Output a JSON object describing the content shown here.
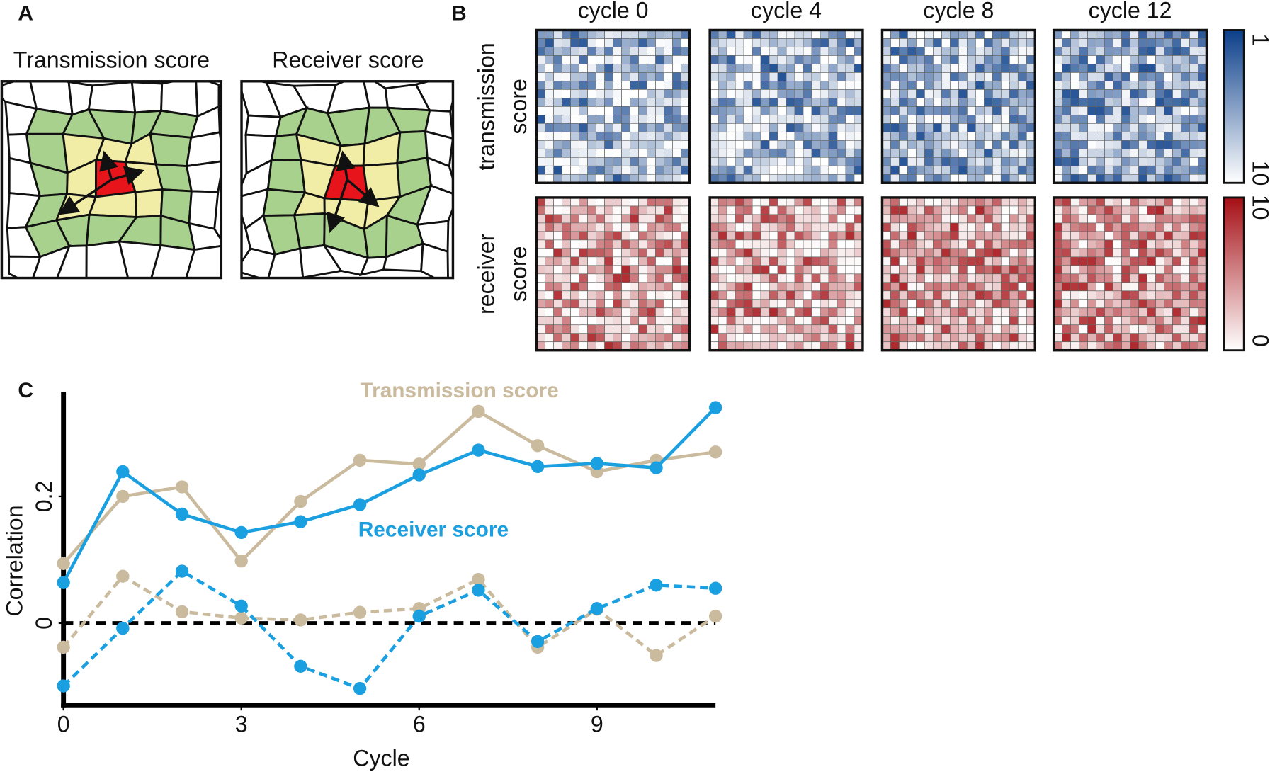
{
  "panel_a": {
    "label": "A",
    "titles": [
      "Transmission score",
      "Receiver score"
    ]
  },
  "panel_b": {
    "label": "B",
    "columns": [
      "cycle 0",
      "cycle 4",
      "cycle 8",
      "cycle 12"
    ],
    "rows": [
      [
        "transmission",
        "score"
      ],
      [
        "receiver",
        "score"
      ]
    ],
    "colorbars": [
      {
        "top": "1",
        "bottom": "10",
        "color": "#0b3f8a"
      },
      {
        "top": "10",
        "bottom": "0",
        "color": "#a50f15"
      }
    ]
  },
  "chart_data": {
    "type": "line",
    "label": "C",
    "xlabel": "Cycle",
    "ylabel": "Correlation",
    "x": [
      0,
      1,
      2,
      3,
      4,
      5,
      6,
      7,
      8,
      9,
      10,
      11
    ],
    "xlim": [
      0,
      11
    ],
    "ylim": [
      -0.13,
      0.365
    ],
    "xticks": [
      0,
      3,
      6,
      9
    ],
    "yticks": [
      0,
      0.2
    ],
    "hline": 0,
    "series": [
      {
        "name": "Transmission score",
        "color": "#cbbb9e",
        "dashed": false,
        "values": [
          0.094,
          0.2,
          0.215,
          0.098,
          0.192,
          0.257,
          0.251,
          0.334,
          0.28,
          0.239,
          0.257,
          0.27
        ]
      },
      {
        "name": "Receiver score",
        "color": "#1a9fe0",
        "dashed": false,
        "values": [
          0.064,
          0.239,
          0.172,
          0.143,
          0.16,
          0.187,
          0.234,
          0.273,
          0.247,
          0.252,
          0.245,
          0.34
        ]
      },
      {
        "color": "#cbbb9e",
        "dashed": true,
        "values": [
          -0.038,
          0.074,
          0.018,
          0.008,
          0.005,
          0.017,
          0.023,
          0.069,
          -0.038,
          0.022,
          -0.051,
          0.011
        ]
      },
      {
        "color": "#1a9fe0",
        "dashed": true,
        "values": [
          -0.099,
          -0.008,
          0.082,
          0.027,
          -0.068,
          -0.103,
          0.011,
          0.052,
          -0.029,
          0.023,
          0.06,
          0.055
        ]
      }
    ]
  }
}
